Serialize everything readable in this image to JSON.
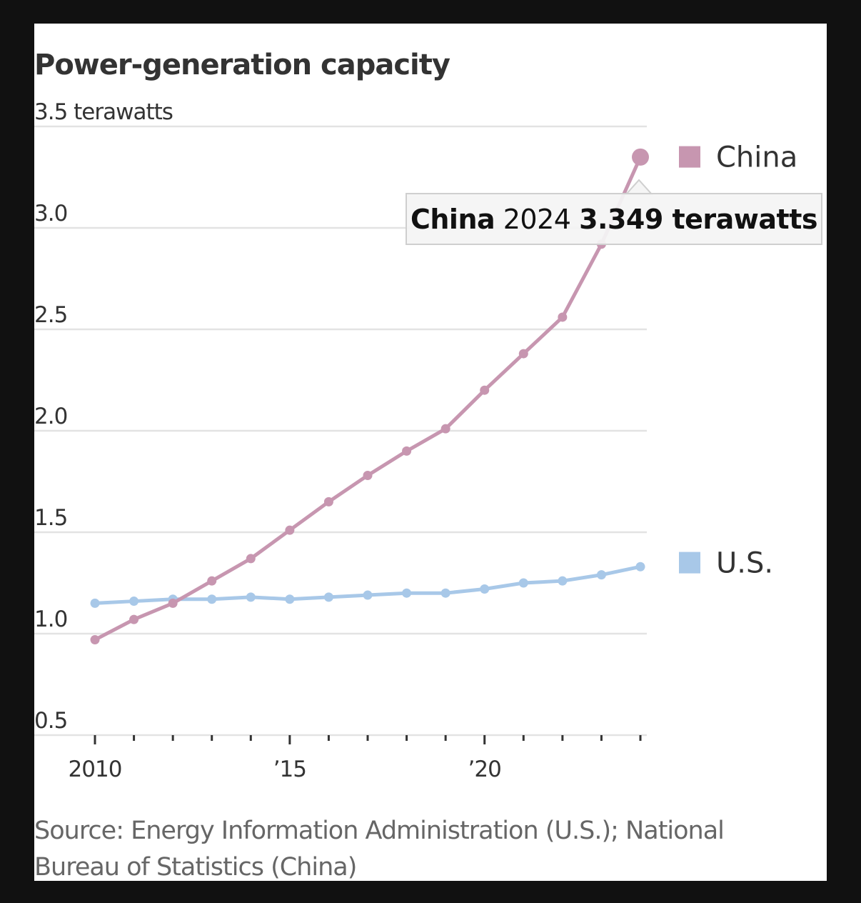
{
  "chart_data": {
    "type": "line",
    "title": "Power-generation capacity",
    "xlabel": "",
    "ylabel": "terawatts",
    "y_unit_label": "terawatts",
    "ylim": [
      0.5,
      3.5
    ],
    "yticks": [
      0.5,
      1.0,
      1.5,
      2.0,
      2.5,
      3.0,
      3.5
    ],
    "ytick_labels": [
      "0.5",
      "1.0",
      "1.5",
      "2.0",
      "2.5",
      "3.0",
      "3.5 terawatts"
    ],
    "xlim": [
      2010,
      2024
    ],
    "x": [
      2010,
      2011,
      2012,
      2013,
      2014,
      2015,
      2016,
      2017,
      2018,
      2019,
      2020,
      2021,
      2022,
      2023,
      2024
    ],
    "xticks_major": [
      2010,
      2015,
      2020
    ],
    "xtick_labels": [
      "2010",
      "’15",
      "’20"
    ],
    "grid": true,
    "legend_placement": "right (inline labels at line ends)",
    "series": [
      {
        "name": "China",
        "color": "#c796b0",
        "values": [
          0.97,
          1.07,
          1.15,
          1.26,
          1.37,
          1.51,
          1.65,
          1.78,
          1.9,
          2.01,
          2.2,
          2.38,
          2.56,
          2.92,
          3.349
        ]
      },
      {
        "name": "U.S.",
        "color": "#a8c8e8",
        "values": [
          1.15,
          1.16,
          1.17,
          1.17,
          1.18,
          1.17,
          1.18,
          1.19,
          1.2,
          1.2,
          1.22,
          1.25,
          1.26,
          1.29,
          1.33
        ]
      }
    ],
    "highlight": {
      "series": "China",
      "x": 2024,
      "value": 3.349
    },
    "annotations": [
      "China 2024 3.349 terawatts"
    ],
    "source": "Source: Energy Information Administration (U.S.); National Bureau of Statistics (China)"
  },
  "tooltip": {
    "series": "China",
    "year": "2024",
    "value": "3.349 terawatts"
  },
  "colors": {
    "china": "#c796b0",
    "us": "#a8c8e8",
    "grid": "#e3e3e3",
    "text": "#333333",
    "source_text": "#666666"
  }
}
